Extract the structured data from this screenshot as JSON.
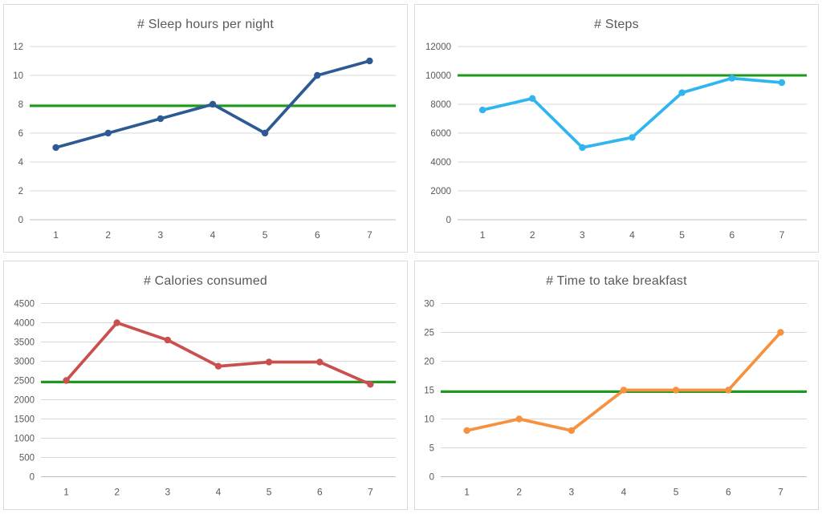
{
  "page": {
    "background_color": "#ffffff",
    "panel_border_color": "#d9d9d9",
    "gridline_color": "#d9d9d9",
    "axis_line_color": "#c0c0c0",
    "text_color": "#595959"
  },
  "target_line": {
    "color": "#1b9a1b",
    "semantic": "goal reference line"
  },
  "chart_data": [
    {
      "type": "line",
      "title": "# Sleep hours per night",
      "categories": [
        "1",
        "2",
        "3",
        "4",
        "5",
        "6",
        "7"
      ],
      "values": [
        5,
        6,
        7,
        8,
        6,
        10,
        11
      ],
      "target": 8,
      "yticks": [
        0,
        2,
        4,
        6,
        8,
        10,
        12
      ],
      "ylim": [
        0,
        12
      ],
      "color": "#2d5a93",
      "grid": "horizontal",
      "legend": "none"
    },
    {
      "type": "line",
      "title": "# Steps",
      "categories": [
        "1",
        "2",
        "3",
        "4",
        "5",
        "6",
        "7"
      ],
      "values": [
        7600,
        8400,
        5000,
        5700,
        8800,
        9800,
        9500
      ],
      "target": 10000,
      "yticks": [
        0,
        2000,
        4000,
        6000,
        8000,
        10000,
        12000
      ],
      "ylim": [
        0,
        12000
      ],
      "color": "#30b6ee",
      "grid": "horizontal",
      "legend": "none"
    },
    {
      "type": "line",
      "title": "# Calories consumed",
      "categories": [
        "1",
        "2",
        "3",
        "4",
        "5",
        "6",
        "7"
      ],
      "values": [
        2500,
        4000,
        3550,
        2870,
        2980,
        2980,
        2400
      ],
      "target": 2500,
      "yticks": [
        0,
        500,
        1000,
        1500,
        2000,
        2500,
        3000,
        3500,
        4000,
        4500
      ],
      "ylim": [
        0,
        4500
      ],
      "color": "#c9504e",
      "grid": "horizontal",
      "legend": "none"
    },
    {
      "type": "line",
      "title": "# Time to take breakfast",
      "categories": [
        "1",
        "2",
        "3",
        "4",
        "5",
        "6",
        "7"
      ],
      "values": [
        8,
        10,
        8,
        15,
        15,
        15,
        25
      ],
      "target": 15,
      "yticks": [
        0,
        5,
        10,
        15,
        20,
        25,
        30
      ],
      "ylim": [
        0,
        30
      ],
      "color": "#f5913f",
      "grid": "horizontal",
      "legend": "none"
    }
  ]
}
